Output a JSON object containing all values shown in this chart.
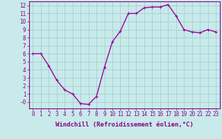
{
  "x": [
    0,
    1,
    2,
    3,
    4,
    5,
    6,
    7,
    8,
    9,
    10,
    11,
    12,
    13,
    14,
    15,
    16,
    17,
    18,
    19,
    20,
    21,
    22,
    23
  ],
  "y": [
    6.0,
    6.0,
    4.5,
    2.7,
    1.5,
    1.0,
    -0.2,
    -0.3,
    0.7,
    4.3,
    7.5,
    8.8,
    11.0,
    11.0,
    11.7,
    11.8,
    11.8,
    12.1,
    10.7,
    9.0,
    8.7,
    8.6,
    9.0,
    8.7
  ],
  "xlabel": "Windchill (Refroidissement éolien,°C)",
  "line_color": "#990099",
  "marker": "+",
  "marker_size": 3,
  "linewidth": 1.0,
  "bg_color": "#c8eaea",
  "grid_color": "#a0c8c8",
  "ylim": [
    -0.8,
    12.5
  ],
  "xlim": [
    -0.5,
    23.5
  ],
  "yticks": [
    0,
    1,
    2,
    3,
    4,
    5,
    6,
    7,
    8,
    9,
    10,
    11,
    12
  ],
  "ytick_labels": [
    "-0",
    "1",
    "2",
    "3",
    "4",
    "5",
    "6",
    "7",
    "8",
    "9",
    "10",
    "11",
    "12"
  ],
  "xticks": [
    0,
    1,
    2,
    3,
    4,
    5,
    6,
    7,
    8,
    9,
    10,
    11,
    12,
    13,
    14,
    15,
    16,
    17,
    18,
    19,
    20,
    21,
    22,
    23
  ],
  "tick_color": "#880088",
  "label_color": "#880088",
  "spine_color": "#880088",
  "label_fontsize": 6.5,
  "tick_fontsize": 5.5
}
